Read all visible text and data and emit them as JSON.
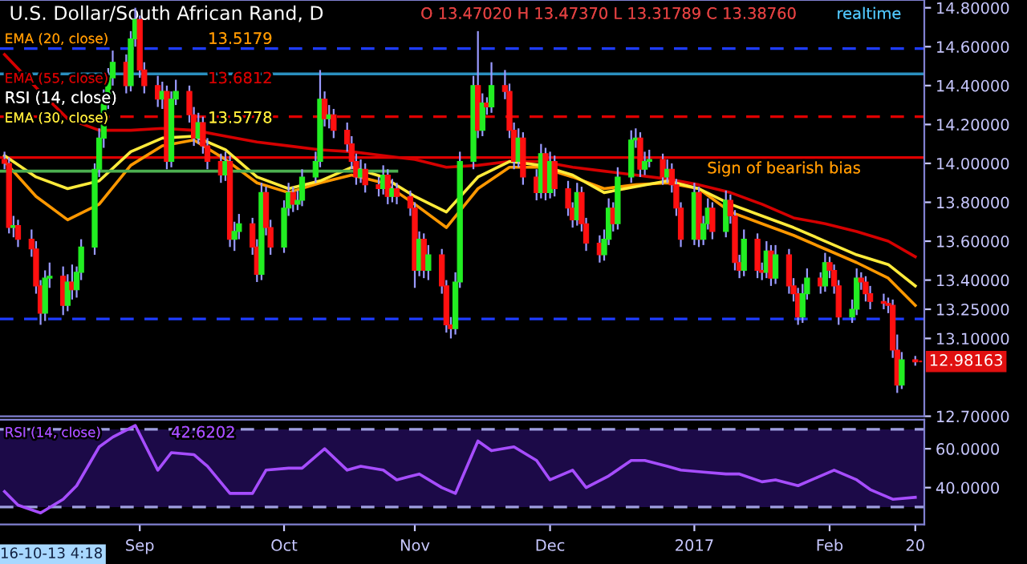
{
  "chart_data": [
    {
      "type": "candlestick",
      "title": "U.S. Dollar/South African Rand, D",
      "annotations": [
        "O 13.47020 H 13.47370 L 13.31789 C 13.38760",
        "realtime",
        "13.5179",
        "13.6812",
        "13.5778",
        "RSI (14, close)",
        {
          "text": "12.98163",
          "x": "2017-02-20",
          "y": 12.98163
        }
      ],
      "x": [
        "2016-08-02",
        "2016-08-03",
        "2016-08-04",
        "2016-08-05",
        "2016-08-08",
        "2016-08-09",
        "2016-08-10",
        "2016-08-11",
        "2016-08-12",
        "2016-08-15",
        "2016-08-16",
        "2016-08-17",
        "2016-08-18",
        "2016-08-19",
        "2016-08-22",
        "2016-08-23",
        "2016-08-24",
        "2016-08-25",
        "2016-08-26",
        "2016-08-29",
        "2016-08-30",
        "2016-08-31",
        "2016-09-01",
        "2016-09-02",
        "2016-09-05",
        "2016-09-06",
        "2016-09-07",
        "2016-09-08",
        "2016-09-09",
        "2016-09-12",
        "2016-09-13",
        "2016-09-14",
        "2016-09-15",
        "2016-09-16",
        "2016-09-19",
        "2016-09-20",
        "2016-09-21",
        "2016-09-22",
        "2016-09-23",
        "2016-09-26",
        "2016-09-27",
        "2016-09-28",
        "2016-09-29",
        "2016-09-30",
        "2016-10-03",
        "2016-10-04",
        "2016-10-05",
        "2016-10-06",
        "2016-10-07",
        "2016-10-10",
        "2016-10-11",
        "2016-10-12",
        "2016-10-13",
        "2016-10-14",
        "2016-10-17",
        "2016-10-18",
        "2016-10-19",
        "2016-10-20",
        "2016-10-21",
        "2016-10-24",
        "2016-10-25",
        "2016-10-26",
        "2016-10-27",
        "2016-10-28",
        "2016-10-31",
        "2016-11-01",
        "2016-11-02",
        "2016-11-03",
        "2016-11-04",
        "2016-11-07",
        "2016-11-08",
        "2016-11-09",
        "2016-11-10",
        "2016-11-11",
        "2016-11-14",
        "2016-11-15",
        "2016-11-16",
        "2016-11-17",
        "2016-11-18",
        "2016-11-21",
        "2016-11-22",
        "2016-11-23",
        "2016-11-24",
        "2016-11-25",
        "2016-11-28",
        "2016-11-29",
        "2016-11-30",
        "2016-12-01",
        "2016-12-02",
        "2016-12-05",
        "2016-12-06",
        "2016-12-07",
        "2016-12-08",
        "2016-12-09",
        "2016-12-12",
        "2016-12-13",
        "2016-12-14",
        "2016-12-15",
        "2016-12-16",
        "2016-12-19",
        "2016-12-20",
        "2016-12-21",
        "2016-12-22",
        "2016-12-23",
        "2016-12-26",
        "2016-12-27",
        "2016-12-28",
        "2016-12-29",
        "2016-12-30",
        "2017-01-02",
        "2017-01-03",
        "2017-01-04",
        "2017-01-05",
        "2017-01-06",
        "2017-01-09",
        "2017-01-10",
        "2017-01-11",
        "2017-01-12",
        "2017-01-13",
        "2017-01-16",
        "2017-01-17",
        "2017-01-18",
        "2017-01-19",
        "2017-01-20",
        "2017-01-23",
        "2017-01-24",
        "2017-01-25",
        "2017-01-26",
        "2017-01-27",
        "2017-01-30",
        "2017-01-31",
        "2017-02-01",
        "2017-02-02",
        "2017-02-03",
        "2017-02-06",
        "2017-02-07",
        "2017-02-08",
        "2017-02-09",
        "2017-02-10",
        "2017-02-13",
        "2017-02-14",
        "2017-02-15",
        "2017-02-16",
        "2017-02-17",
        "2017-02-20"
      ],
      "ohlc": [
        [
          14.02,
          14.06,
          13.97,
          14.0
        ],
        [
          14.0,
          14.03,
          13.64,
          13.67
        ],
        [
          13.67,
          13.73,
          13.62,
          13.68
        ],
        [
          13.68,
          13.71,
          13.57,
          13.61
        ],
        [
          13.61,
          13.66,
          13.52,
          13.56
        ],
        [
          13.56,
          13.6,
          13.33,
          13.37
        ],
        [
          13.37,
          13.4,
          13.17,
          13.23
        ],
        [
          13.23,
          13.45,
          13.19,
          13.41
        ],
        [
          13.41,
          13.49,
          13.36,
          13.42
        ],
        [
          13.42,
          13.47,
          13.22,
          13.27
        ],
        [
          13.27,
          13.43,
          13.24,
          13.39
        ],
        [
          13.39,
          13.48,
          13.3,
          13.35
        ],
        [
          13.35,
          13.47,
          13.31,
          13.44
        ],
        [
          13.44,
          13.61,
          13.4,
          13.57
        ],
        [
          13.57,
          14.0,
          13.53,
          13.97
        ],
        [
          13.97,
          14.18,
          13.93,
          14.13
        ],
        [
          14.13,
          14.38,
          14.08,
          14.33
        ],
        [
          14.33,
          14.49,
          14.28,
          14.44
        ],
        [
          14.44,
          14.58,
          14.4,
          14.52
        ],
        [
          14.52,
          14.56,
          14.36,
          14.4
        ],
        [
          14.4,
          14.68,
          14.37,
          14.64
        ],
        [
          14.64,
          14.8,
          14.6,
          14.74
        ],
        [
          14.74,
          14.76,
          14.44,
          14.48
        ],
        [
          14.48,
          14.52,
          14.36,
          14.4
        ],
        [
          14.4,
          14.45,
          14.29,
          14.33
        ],
        [
          14.33,
          14.42,
          14.28,
          14.37
        ],
        [
          14.37,
          14.4,
          13.97,
          14.01
        ],
        [
          14.01,
          14.37,
          13.98,
          14.33
        ],
        [
          14.33,
          14.43,
          14.3,
          14.37
        ],
        [
          14.37,
          14.4,
          14.21,
          14.25
        ],
        [
          14.25,
          14.29,
          14.09,
          14.13
        ],
        [
          14.13,
          14.26,
          14.1,
          14.21
        ],
        [
          14.21,
          14.24,
          14.05,
          14.09
        ],
        [
          14.09,
          14.13,
          13.97,
          14.01
        ],
        [
          14.01,
          14.05,
          13.9,
          13.94
        ],
        [
          13.94,
          14.06,
          13.91,
          14.01
        ],
        [
          14.01,
          14.04,
          13.57,
          13.61
        ],
        [
          13.61,
          13.7,
          13.55,
          13.65
        ],
        [
          13.65,
          13.74,
          13.61,
          13.69
        ],
        [
          13.69,
          13.72,
          13.53,
          13.57
        ],
        [
          13.57,
          13.61,
          13.39,
          13.43
        ],
        [
          13.43,
          13.9,
          13.4,
          13.85
        ],
        [
          13.85,
          13.88,
          13.63,
          13.67
        ],
        [
          13.67,
          13.71,
          13.53,
          13.57
        ],
        [
          13.57,
          13.81,
          13.54,
          13.77
        ],
        [
          13.77,
          13.9,
          13.73,
          13.85
        ],
        [
          13.85,
          13.88,
          13.75,
          13.79
        ],
        [
          13.79,
          13.86,
          13.76,
          13.81
        ],
        [
          13.81,
          13.97,
          13.78,
          13.93
        ],
        [
          13.93,
          14.06,
          13.9,
          14.01
        ],
        [
          14.01,
          14.48,
          13.98,
          14.33
        ],
        [
          14.33,
          14.37,
          14.19,
          14.23
        ],
        [
          14.23,
          14.3,
          14.18,
          14.25
        ],
        [
          14.25,
          14.28,
          14.13,
          14.17
        ],
        [
          14.17,
          14.21,
          14.06,
          14.1
        ],
        [
          14.1,
          14.14,
          13.97,
          14.01
        ],
        [
          14.01,
          14.05,
          13.89,
          13.93
        ],
        [
          13.93,
          14.02,
          13.9,
          13.97
        ],
        [
          13.97,
          14.0,
          13.85,
          13.89
        ],
        [
          13.89,
          13.93,
          13.83,
          13.87
        ],
        [
          13.87,
          13.99,
          13.84,
          13.94
        ],
        [
          13.94,
          13.97,
          13.79,
          13.83
        ],
        [
          13.83,
          13.92,
          13.8,
          13.87
        ],
        [
          13.87,
          13.9,
          13.79,
          13.83
        ],
        [
          13.83,
          13.86,
          13.73,
          13.77
        ],
        [
          13.77,
          13.8,
          13.36,
          13.45
        ],
        [
          13.45,
          13.65,
          13.42,
          13.61
        ],
        [
          13.61,
          13.64,
          13.41,
          13.45
        ],
        [
          13.45,
          13.58,
          13.4,
          13.53
        ],
        [
          13.53,
          13.56,
          13.33,
          13.37
        ],
        [
          13.37,
          13.4,
          13.13,
          13.17
        ],
        [
          13.17,
          13.21,
          13.1,
          13.15
        ],
        [
          13.15,
          13.44,
          13.12,
          13.39
        ],
        [
          13.39,
          14.06,
          13.36,
          14.01
        ],
        [
          14.01,
          14.45,
          13.97,
          14.4
        ],
        [
          14.4,
          14.68,
          14.13,
          14.17
        ],
        [
          14.17,
          14.36,
          14.14,
          14.31
        ],
        [
          14.31,
          14.34,
          14.25,
          14.29
        ],
        [
          14.29,
          14.52,
          14.26,
          14.4
        ],
        [
          14.4,
          14.48,
          14.33,
          14.37
        ],
        [
          14.37,
          14.41,
          14.13,
          14.17
        ],
        [
          14.17,
          14.21,
          13.97,
          14.01
        ],
        [
          14.01,
          14.18,
          13.98,
          14.13
        ],
        [
          14.13,
          14.16,
          13.89,
          13.93
        ],
        [
          13.93,
          13.97,
          13.81,
          13.85
        ],
        [
          13.85,
          14.1,
          13.82,
          14.05
        ],
        [
          14.05,
          14.08,
          13.81,
          13.85
        ],
        [
          13.85,
          14.06,
          13.82,
          14.01
        ],
        [
          14.01,
          14.04,
          13.83,
          13.87
        ],
        [
          13.87,
          13.91,
          13.73,
          13.77
        ],
        [
          13.77,
          13.8,
          13.67,
          13.71
        ],
        [
          13.71,
          13.9,
          13.68,
          13.85
        ],
        [
          13.85,
          13.88,
          13.65,
          13.69
        ],
        [
          13.69,
          13.72,
          13.55,
          13.59
        ],
        [
          13.59,
          13.63,
          13.49,
          13.53
        ],
        [
          13.53,
          13.66,
          13.5,
          13.61
        ],
        [
          13.61,
          13.82,
          13.58,
          13.77
        ],
        [
          13.77,
          13.8,
          13.65,
          13.69
        ],
        [
          13.69,
          13.98,
          13.66,
          13.93
        ],
        [
          13.93,
          14.17,
          13.9,
          14.12
        ],
        [
          14.12,
          14.18,
          14.08,
          14.13
        ],
        [
          14.13,
          14.16,
          13.93,
          13.97
        ],
        [
          13.97,
          14.06,
          13.94,
          14.01
        ],
        [
          14.01,
          14.07,
          13.98,
          14.02
        ],
        [
          14.02,
          14.05,
          13.89,
          13.93
        ],
        [
          13.93,
          14.02,
          13.9,
          13.97
        ],
        [
          13.97,
          14.0,
          13.85,
          13.89
        ],
        [
          13.89,
          13.92,
          13.73,
          13.77
        ],
        [
          13.77,
          13.8,
          13.57,
          13.61
        ],
        [
          13.61,
          13.9,
          13.58,
          13.85
        ],
        [
          13.85,
          13.88,
          13.57,
          13.61
        ],
        [
          13.61,
          13.73,
          13.58,
          13.69
        ],
        [
          13.69,
          13.82,
          13.66,
          13.77
        ],
        [
          13.77,
          13.8,
          13.61,
          13.65
        ],
        [
          13.65,
          13.86,
          13.62,
          13.81
        ],
        [
          13.81,
          13.84,
          13.69,
          13.73
        ],
        [
          13.73,
          13.76,
          13.45,
          13.49
        ],
        [
          13.49,
          13.53,
          13.41,
          13.45
        ],
        [
          13.45,
          13.66,
          13.42,
          13.61
        ],
        [
          13.61,
          13.64,
          13.41,
          13.45
        ],
        [
          13.45,
          13.49,
          13.4,
          13.44
        ],
        [
          13.44,
          13.6,
          13.41,
          13.55
        ],
        [
          13.55,
          13.58,
          13.37,
          13.41
        ],
        [
          13.41,
          13.58,
          13.38,
          13.53
        ],
        [
          13.53,
          13.56,
          13.33,
          13.37
        ],
        [
          13.37,
          13.41,
          13.29,
          13.33
        ],
        [
          13.33,
          13.36,
          13.17,
          13.21
        ],
        [
          13.21,
          13.38,
          13.18,
          13.33
        ],
        [
          13.33,
          13.46,
          13.3,
          13.41
        ],
        [
          13.41,
          13.44,
          13.33,
          13.37
        ],
        [
          13.37,
          13.54,
          13.34,
          13.49
        ],
        [
          13.49,
          13.52,
          13.41,
          13.45
        ],
        [
          13.45,
          13.48,
          13.33,
          13.37
        ],
        [
          13.37,
          13.4,
          13.17,
          13.21
        ],
        [
          13.21,
          13.3,
          13.18,
          13.25
        ],
        [
          13.25,
          13.46,
          13.22,
          13.41
        ],
        [
          13.41,
          13.44,
          13.35,
          13.39
        ],
        [
          13.39,
          13.42,
          13.29,
          13.33
        ],
        [
          13.33,
          13.37,
          13.25,
          13.29
        ],
        [
          13.29,
          13.33,
          13.25,
          13.28
        ],
        [
          13.28,
          13.31,
          13.23,
          13.27
        ],
        [
          13.27,
          13.3,
          13.0,
          13.04
        ],
        [
          13.04,
          13.12,
          12.82,
          12.86
        ],
        [
          12.86,
          13.03,
          12.84,
          12.99
        ],
        [
          12.99,
          13.01,
          12.96,
          12.98
        ]
      ],
      "series": [
        {
          "name": "EMA (20, close)",
          "type": "line",
          "color": "#ff9800",
          "x": [
            "2016-08-02",
            "2016-08-09",
            "2016-08-16",
            "2016-08-23",
            "2016-08-30",
            "2016-09-06",
            "2016-09-13",
            "2016-09-20",
            "2016-09-27",
            "2016-10-04",
            "2016-10-11",
            "2016-10-18",
            "2016-10-25",
            "2016-11-01",
            "2016-11-08",
            "2016-11-15",
            "2016-11-22",
            "2016-11-29",
            "2016-12-06",
            "2016-12-13",
            "2016-12-20",
            "2016-12-27",
            "2017-01-03",
            "2017-01-10",
            "2017-01-17",
            "2017-01-24",
            "2017-01-31",
            "2017-02-07",
            "2017-02-14",
            "2017-02-20"
          ],
          "values": [
            14.01,
            13.83,
            13.71,
            13.79,
            13.99,
            14.09,
            14.12,
            14.02,
            13.9,
            13.85,
            13.9,
            13.94,
            13.9,
            13.79,
            13.67,
            13.87,
            13.98,
            13.98,
            13.93,
            13.87,
            13.89,
            13.9,
            13.87,
            13.75,
            13.69,
            13.63,
            13.56,
            13.49,
            13.41,
            13.27
          ]
        },
        {
          "name": "EMA (55, close)",
          "type": "line",
          "color": "#d50000",
          "x": [
            "2016-08-02",
            "2016-08-09",
            "2016-08-16",
            "2016-08-23",
            "2016-08-30",
            "2016-09-06",
            "2016-09-13",
            "2016-09-20",
            "2016-09-27",
            "2016-10-04",
            "2016-10-11",
            "2016-10-18",
            "2016-10-25",
            "2016-11-01",
            "2016-11-08",
            "2016-11-15",
            "2016-11-22",
            "2016-11-29",
            "2016-12-06",
            "2016-12-13",
            "2016-12-20",
            "2016-12-27",
            "2017-01-03",
            "2017-01-10",
            "2017-01-17",
            "2017-01-24",
            "2017-01-31",
            "2017-02-07",
            "2017-02-14",
            "2017-02-20"
          ],
          "values": [
            14.56,
            14.39,
            14.23,
            14.17,
            14.17,
            14.18,
            14.17,
            14.14,
            14.11,
            14.09,
            14.07,
            14.06,
            14.04,
            14.02,
            13.98,
            13.99,
            14.01,
            14.01,
            13.98,
            13.96,
            13.94,
            13.92,
            13.89,
            13.85,
            13.79,
            13.72,
            13.69,
            13.65,
            13.6,
            13.52
          ]
        },
        {
          "name": "EMA (30, close)",
          "type": "line",
          "color": "#ffeb3b",
          "x": [
            "2016-08-02",
            "2016-08-09",
            "2016-08-16",
            "2016-08-23",
            "2016-08-30",
            "2016-09-06",
            "2016-09-13",
            "2016-09-20",
            "2016-09-27",
            "2016-10-04",
            "2016-10-11",
            "2016-10-18",
            "2016-10-25",
            "2016-11-01",
            "2016-11-08",
            "2016-11-15",
            "2016-11-22",
            "2016-11-29",
            "2016-12-06",
            "2016-12-13",
            "2016-12-20",
            "2016-12-27",
            "2017-01-03",
            "2017-01-10",
            "2017-01-17",
            "2017-01-24",
            "2017-01-31",
            "2017-02-07",
            "2017-02-14",
            "2017-02-20"
          ],
          "values": [
            14.04,
            13.93,
            13.87,
            13.91,
            14.06,
            14.13,
            14.14,
            14.07,
            13.93,
            13.87,
            13.91,
            13.98,
            13.93,
            13.83,
            13.75,
            13.93,
            14.01,
            13.99,
            13.94,
            13.85,
            13.88,
            13.91,
            13.87,
            13.79,
            13.73,
            13.67,
            13.6,
            13.53,
            13.48,
            13.37
          ]
        },
        {
          "type": "line",
          "color": "#4caf50",
          "x": [
            "2016-08-01",
            "2016-10-28"
          ],
          "values": [
            13.96,
            13.96
          ]
        }
      ],
      "ref_lines": [
        {
          "axis": "y",
          "value": 14.59,
          "color": "#1e3cff",
          "line_style": "dashed"
        },
        {
          "axis": "y",
          "value": 14.46,
          "color": "#2a8fbf",
          "line_style": "solid"
        },
        {
          "axis": "y",
          "value": 14.24,
          "color": "#e00000",
          "line_style": "dashed"
        },
        {
          "axis": "y",
          "value": 14.03,
          "color": "#e00000",
          "line_style": "solid",
          "label": "Sign of bearish bias"
        },
        {
          "axis": "y",
          "value": 13.2,
          "color": "#1e3cff",
          "line_style": "dashed"
        }
      ],
      "xlim": [
        "2016-08-01",
        "2017-02-22"
      ],
      "ylim": [
        12.7,
        14.84
      ],
      "yticks": [
        {
          "value": 14.8,
          "label": "14.80000"
        },
        {
          "value": 14.6,
          "label": "14.60000"
        },
        {
          "value": 14.4,
          "label": "14.40000"
        },
        {
          "value": 14.2,
          "label": "14.20000"
        },
        {
          "value": 14.0,
          "label": "14.00000"
        },
        {
          "value": 13.8,
          "label": "13.80000"
        },
        {
          "value": 13.6,
          "label": "13.60000"
        },
        {
          "value": 13.4,
          "label": "13.40000"
        },
        {
          "value": 13.25,
          "label": "13.25000"
        },
        {
          "value": 13.1,
          "label": "13.10000"
        },
        {
          "value": 12.7,
          "label": "12.70000"
        }
      ],
      "tick_labels": "y",
      "legend": "top left"
    },
    {
      "type": "line",
      "annotations": [
        "42.6202",
        "16-10-13 4:18"
      ],
      "series": [
        {
          "name": "RSI (14, close)",
          "color": "#a64dff",
          "x": [
            "2016-08-02",
            "2016-08-05",
            "2016-08-10",
            "2016-08-15",
            "2016-08-18",
            "2016-08-23",
            "2016-08-26",
            "2016-08-31",
            "2016-09-05",
            "2016-09-08",
            "2016-09-13",
            "2016-09-16",
            "2016-09-21",
            "2016-09-26",
            "2016-09-29",
            "2016-10-04",
            "2016-10-07",
            "2016-10-12",
            "2016-10-17",
            "2016-10-20",
            "2016-10-25",
            "2016-10-28",
            "2016-11-02",
            "2016-11-07",
            "2016-11-10",
            "2016-11-15",
            "2016-11-18",
            "2016-11-23",
            "2016-11-28",
            "2016-12-01",
            "2016-12-06",
            "2016-12-09",
            "2016-12-14",
            "2016-12-19",
            "2016-12-22",
            "2016-12-27",
            "2016-12-30",
            "2017-01-04",
            "2017-01-09",
            "2017-01-12",
            "2017-01-17",
            "2017-01-20",
            "2017-01-25",
            "2017-01-30",
            "2017-02-02",
            "2017-02-07",
            "2017-02-10",
            "2017-02-15",
            "2017-02-20"
          ],
          "values": [
            38,
            31,
            27,
            34,
            41,
            61,
            66,
            72,
            49,
            58,
            57,
            51,
            37,
            37,
            49,
            50,
            50,
            60,
            49,
            51,
            49,
            44,
            47,
            40,
            37,
            64,
            59,
            61,
            54,
            44,
            49,
            40,
            46,
            54,
            54,
            51,
            49,
            48,
            47,
            47,
            43,
            44,
            41,
            46,
            49,
            44,
            39,
            34,
            35
          ]
        }
      ],
      "bands": [
        {
          "axis": "y",
          "from": 30,
          "to": 70,
          "color": "#1c0a48"
        }
      ],
      "ref_lines": [
        {
          "axis": "y",
          "value": 70,
          "color": "#9e9ee0",
          "line_style": "dashed"
        },
        {
          "axis": "y",
          "value": 30,
          "color": "#9e9ee0",
          "line_style": "dashed"
        }
      ],
      "xlim": [
        "2016-08-01",
        "2017-02-22"
      ],
      "ylim": [
        21,
        75
      ],
      "xticks": [
        {
          "value": "2016-09-01",
          "label": "Sep"
        },
        {
          "value": "2016-10-03",
          "label": "Oct"
        },
        {
          "value": "2016-11-01",
          "label": "Nov"
        },
        {
          "value": "2016-12-01",
          "label": "Dec"
        },
        {
          "value": "2017-01-02",
          "label": "2017"
        },
        {
          "value": "2017-02-01",
          "label": "Feb"
        },
        {
          "value": "2017-02-20",
          "label": "20"
        }
      ],
      "yticks": [
        {
          "value": 40,
          "label": "40.0000"
        },
        {
          "value": 60,
          "label": "60.0000"
        }
      ],
      "legend": "top left"
    }
  ]
}
